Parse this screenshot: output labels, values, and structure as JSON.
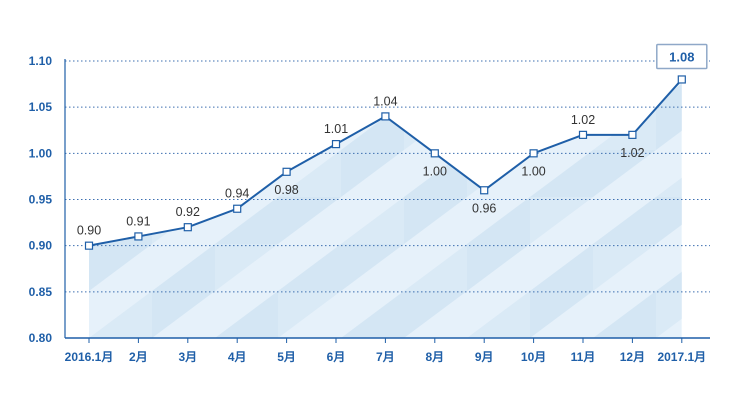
{
  "chart_data": {
    "type": "area",
    "title": "",
    "xlabel": "",
    "ylabel": "",
    "categories": [
      "2016.1月",
      "2月",
      "3月",
      "4月",
      "5月",
      "6月",
      "7月",
      "8月",
      "9月",
      "10月",
      "11月",
      "12月",
      "2017.1月"
    ],
    "values": [
      0.9,
      0.91,
      0.92,
      0.94,
      0.98,
      1.01,
      1.04,
      1.0,
      0.96,
      1.0,
      1.02,
      1.02,
      1.08
    ],
    "value_labels": [
      "0.90",
      "0.91",
      "0.92",
      "0.94",
      "0.98",
      "1.01",
      "1.04",
      "1.00",
      "0.96",
      "1.00",
      "1.02",
      "1.02",
      "1.08"
    ],
    "label_positions": [
      "above",
      "above",
      "above",
      "above",
      "below",
      "above",
      "above",
      "below",
      "below",
      "below",
      "above",
      "below",
      "above"
    ],
    "highlight_index": 12,
    "ylim": [
      0.8,
      1.1
    ],
    "y_ticks": [
      "0.80",
      "0.85",
      "0.90",
      "0.95",
      "1.00",
      "1.05",
      "1.10"
    ],
    "grid": true,
    "colors": {
      "line": "#1f5fa8",
      "axis": "#1f5fa8",
      "grid": "#3d6fb0",
      "marker_fill": "#ffffff",
      "area_light": "#e6f1fa",
      "area_dark": "#cfe3f3",
      "highlight_border": "#8fa8c8"
    }
  }
}
